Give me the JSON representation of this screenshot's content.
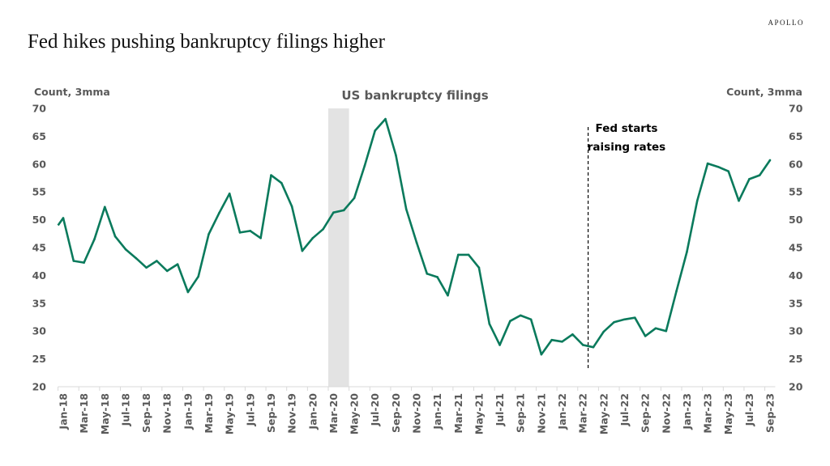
{
  "header": {
    "title": "Fed hikes pushing bankruptcy filings higher",
    "brand": "APOLLO"
  },
  "chart_data": {
    "type": "line",
    "title": "US bankruptcy filings",
    "ylabel_left": "Count, 3mma",
    "ylabel_right": "Count, 3mma",
    "ylim": [
      20,
      70
    ],
    "yticks": [
      20,
      25,
      30,
      35,
      40,
      45,
      50,
      55,
      60,
      65,
      70
    ],
    "x": [
      "Jan-18",
      "Feb-18",
      "Mar-18",
      "Apr-18",
      "May-18",
      "Jun-18",
      "Jul-18",
      "Aug-18",
      "Sep-18",
      "Oct-18",
      "Nov-18",
      "Dec-18",
      "Jan-19",
      "Feb-19",
      "Mar-19",
      "Apr-19",
      "May-19",
      "Jun-19",
      "Jul-19",
      "Aug-19",
      "Sep-19",
      "Oct-19",
      "Nov-19",
      "Dec-19",
      "Jan-20",
      "Feb-20",
      "Mar-20",
      "Apr-20",
      "May-20",
      "Jun-20",
      "Jul-20",
      "Aug-20",
      "Sep-20",
      "Oct-20",
      "Nov-20",
      "Dec-20",
      "Jan-21",
      "Feb-21",
      "Mar-21",
      "Apr-21",
      "May-21",
      "Jun-21",
      "Jul-21",
      "Aug-21",
      "Sep-21",
      "Oct-21",
      "Nov-21",
      "Dec-21",
      "Jan-22",
      "Feb-22",
      "Mar-22",
      "Apr-22",
      "May-22",
      "Jun-22",
      "Jul-22",
      "Aug-22",
      "Sep-22",
      "Oct-22",
      "Nov-22",
      "Dec-22",
      "Jan-23",
      "Feb-23",
      "Mar-23",
      "Apr-23",
      "May-23",
      "Jun-23",
      "Jul-23",
      "Aug-23",
      "Sep-23"
    ],
    "xtick_every": 2,
    "series": [
      {
        "color": "#0a7a5c",
        "values": [
          50.3,
          42.6,
          42.3,
          46.5,
          52.3,
          47.0,
          44.7,
          43.1,
          41.4,
          42.6,
          40.8,
          42.0,
          37.0,
          39.8,
          47.4,
          51.2,
          54.7,
          47.7,
          48.0,
          46.7,
          58.0,
          56.6,
          52.4,
          44.4,
          46.7,
          48.3,
          51.3,
          51.7,
          53.9,
          59.7,
          66.0,
          68.1,
          61.6,
          51.9,
          45.9,
          40.3,
          39.7,
          36.4,
          43.7,
          43.7,
          41.4,
          31.3,
          27.5,
          31.8,
          32.8,
          32.1,
          25.8,
          28.4,
          28.1,
          29.4,
          27.5,
          27.1,
          29.9,
          31.6,
          32.1,
          32.4,
          29.1,
          30.5,
          30.0,
          37.2,
          44.2,
          53.4,
          60.1,
          59.5,
          58.7,
          53.4,
          57.3,
          58.0,
          60.7
        ]
      }
    ],
    "shaded_period": {
      "start": "Mar-20",
      "end": "Apr-20",
      "color": "#e3e3e3"
    },
    "annotation": {
      "text_line1": "Fed starts",
      "text_line2": "raising rates",
      "at": "Mar-22",
      "style": "dashed vertical line"
    },
    "grid": false,
    "legend": "none"
  }
}
